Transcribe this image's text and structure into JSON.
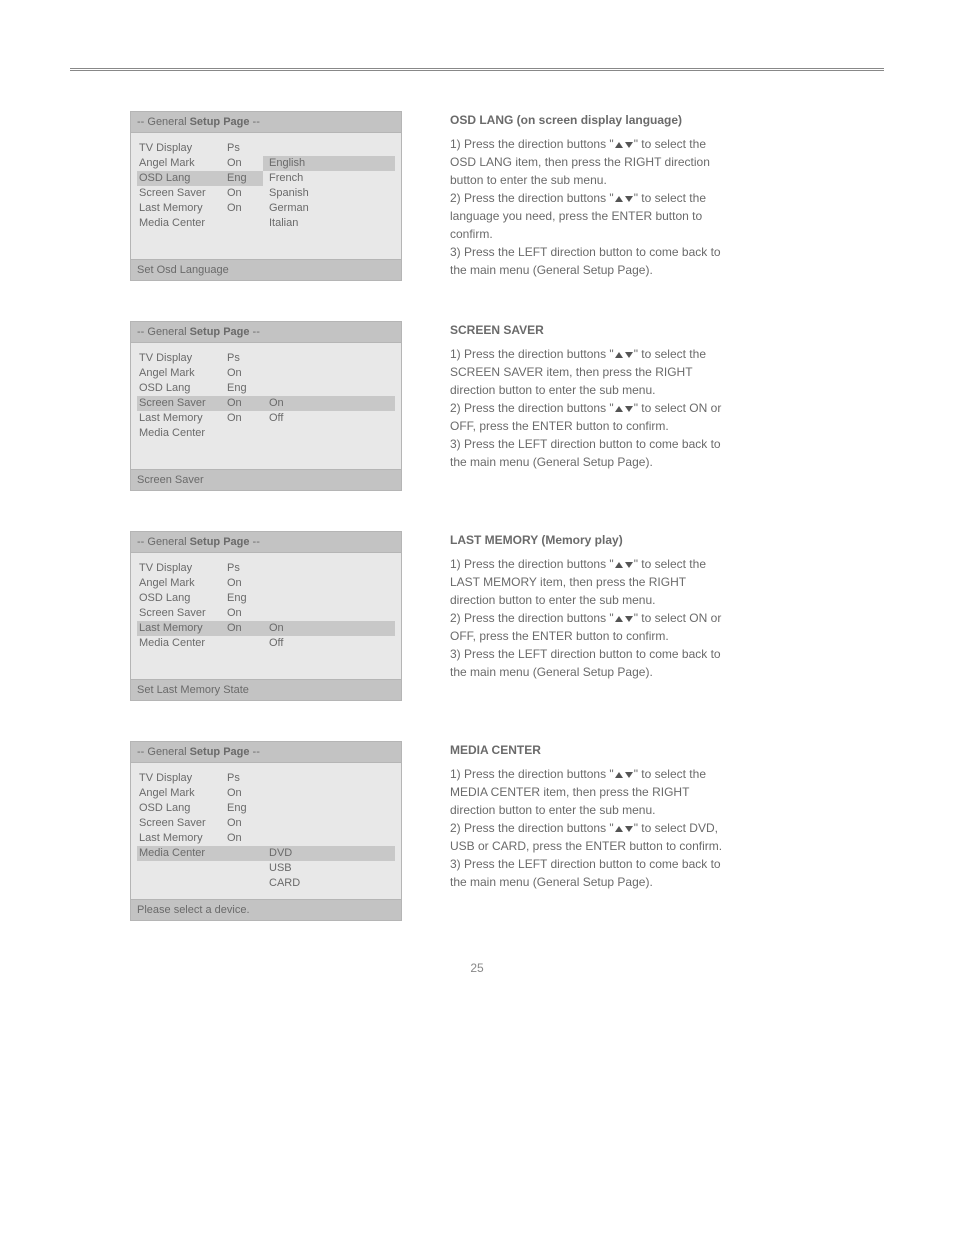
{
  "page_number": "25",
  "menu_common": {
    "title_prefix": "-- General ",
    "title_bold": "Setup Page",
    "title_suffix": " --",
    "items": [
      {
        "label": "TV Display",
        "value": "Ps"
      },
      {
        "label": "Angel Mark",
        "value": "On"
      },
      {
        "label": "OSD Lang",
        "value": "Eng"
      },
      {
        "label": "Screen Saver",
        "value": "On"
      },
      {
        "label": "Last Memory",
        "value": "On"
      },
      {
        "label": "Media Center",
        "value": ""
      }
    ]
  },
  "sections": [
    {
      "id": "osd_lang",
      "highlight_index": 2,
      "options_start_index": 1,
      "options": [
        "English",
        "French",
        "Spanish",
        "German",
        "Italian"
      ],
      "option_highlight": 0,
      "footer": "Set Osd Language",
      "heading": "OSD LANG (on screen display language)",
      "lines": [
        "1) Press the direction buttons \"▲▼\" to select the",
        "    OSD LANG item, then press the RIGHT direction",
        "    button to enter the sub menu.",
        "2) Press the direction buttons \"▲▼\" to select the",
        "    language you need, press the ENTER button to",
        "    confirm.",
        "3) Press the LEFT direction button to come back to",
        "    the main menu (General Setup Page)."
      ]
    },
    {
      "id": "screen_saver",
      "highlight_index": 3,
      "options_start_index": 3,
      "options": [
        "On",
        "Off"
      ],
      "option_highlight": 0,
      "footer": "Screen Saver",
      "heading": "SCREEN SAVER",
      "lines": [
        "1) Press the direction buttons \"▲▼\" to select the",
        "    SCREEN SAVER item, then press the RIGHT",
        "    direction button to enter the sub menu.",
        "2) Press the direction buttons \"▲▼\" to select ON or",
        "    OFF, press the ENTER button to confirm.",
        "3) Press the LEFT direction button to come back to",
        "    the main menu (General Setup Page)."
      ]
    },
    {
      "id": "last_memory",
      "highlight_index": 4,
      "options_start_index": 4,
      "options": [
        "On",
        "Off"
      ],
      "option_highlight": 0,
      "footer": "Set Last Memory State",
      "heading": "LAST MEMORY (Memory play)",
      "lines": [
        "1) Press the direction buttons \"▲▼\" to select the",
        "    LAST MEMORY item, then press the RIGHT",
        "    direction button to enter the sub menu.",
        "2) Press the direction buttons \"▲▼\" to select ON or",
        "    OFF, press the ENTER button to confirm.",
        "3) Press the LEFT direction button to come back to",
        "    the main menu (General Setup Page)."
      ]
    },
    {
      "id": "media_center",
      "highlight_index": 5,
      "options_start_index": 5,
      "options": [
        "DVD",
        "USB",
        "CARD"
      ],
      "option_highlight": 0,
      "footer": "Please select a device.",
      "heading": "MEDIA CENTER",
      "lines": [
        "1) Press the direction buttons \"▲▼\" to select the",
        "    MEDIA CENTER item, then press the RIGHT",
        "    direction button to enter the sub menu.",
        "2) Press the direction buttons \"▲▼\" to select DVD,",
        "    USB or CARD, press the ENTER button to confirm.",
        "3) Press the LEFT direction button to come back to",
        "    the main menu (General Setup Page)."
      ]
    }
  ]
}
